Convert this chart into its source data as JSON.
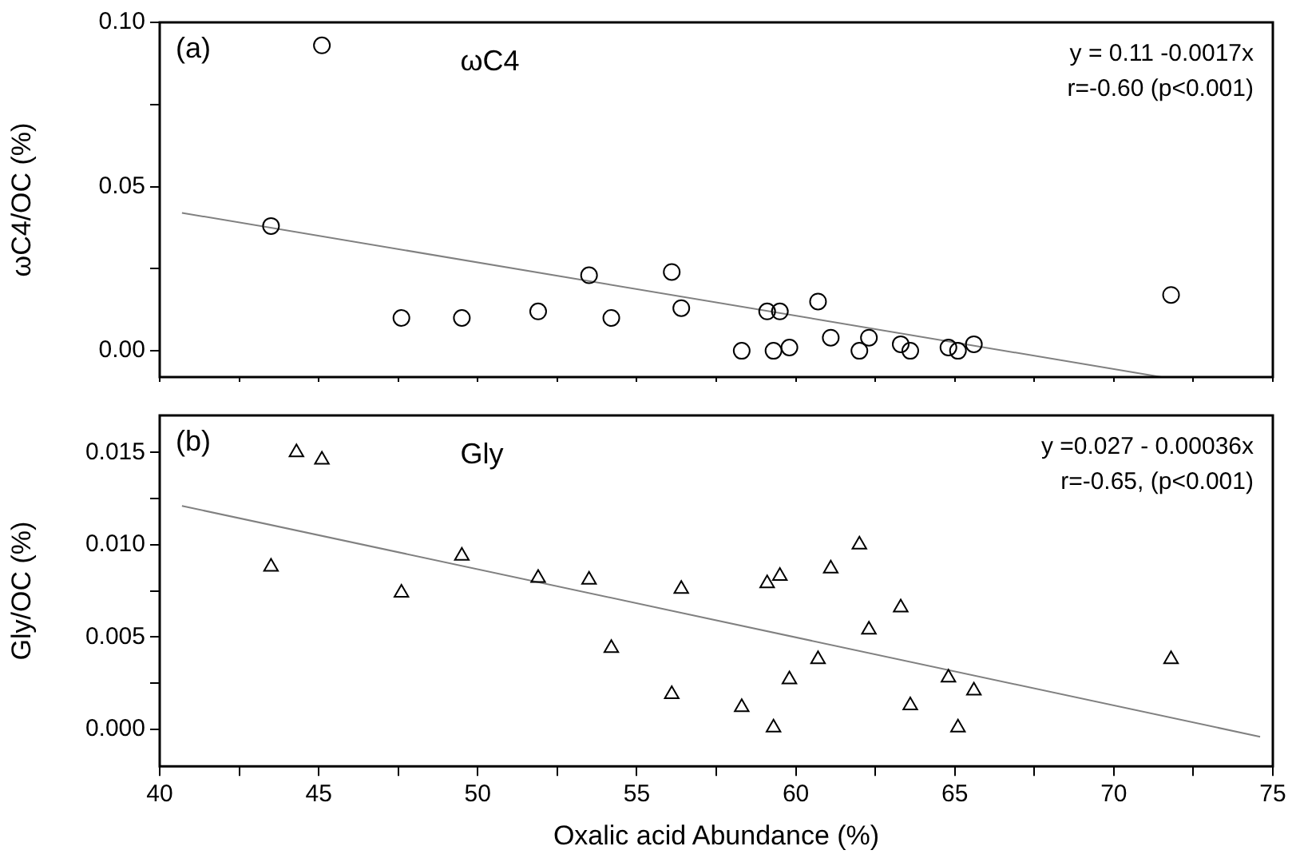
{
  "chart_data": [
    {
      "type": "scatter",
      "ylabel": "ωC4/OC (%)",
      "annotations": [
        "(a)",
        "ωC4",
        "y = 0.11 -0.0017x",
        "r=-0.60 (p<0.001)"
      ],
      "xlim": [
        40,
        75
      ],
      "xticks": [
        40,
        {
          "value": 42.5,
          "label": null
        },
        45,
        {
          "value": 47.5,
          "label": null
        },
        50,
        {
          "value": 52.5,
          "label": null
        },
        55,
        {
          "value": 57.5,
          "label": null
        },
        60,
        {
          "value": 62.5,
          "label": null
        },
        65,
        {
          "value": 67.5,
          "label": null
        },
        70,
        {
          "value": 72.5,
          "label": null
        },
        75
      ],
      "ylim": [
        -0.008,
        0.1
      ],
      "yticks": [
        {
          "value": 0,
          "label": "0.00"
        },
        {
          "value": 0.025,
          "label": null
        },
        {
          "value": 0.05,
          "label": "0.05"
        },
        {
          "value": 0.075,
          "label": null
        },
        {
          "value": 0.1,
          "label": "0.10"
        }
      ],
      "tick_labels": "y",
      "grid": false,
      "legend": false,
      "series": [
        {
          "marker": "circle",
          "color": "#000000",
          "x": [
            43.5,
            45.1,
            47.6,
            49.5,
            51.9,
            53.5,
            54.2,
            56.1,
            56.4,
            58.3,
            59.1,
            59.3,
            59.5,
            59.8,
            60.7,
            61.1,
            62.0,
            62.3,
            63.3,
            63.6,
            64.8,
            65.1,
            65.6,
            71.8
          ],
          "values": [
            0.038,
            0.093,
            0.01,
            0.01,
            0.012,
            0.023,
            0.01,
            0.024,
            0.013,
            0.0,
            0.012,
            0.0,
            0.012,
            0.001,
            0.015,
            0.004,
            0.0,
            0.004,
            0.002,
            0.0,
            0.001,
            0.0,
            0.002,
            0.017
          ]
        },
        {
          "type": "line",
          "marker": "none",
          "color": "#808080",
          "x": [
            40.7,
            71.5
          ],
          "values": [
            0.042,
            -0.008
          ]
        }
      ]
    },
    {
      "type": "scatter",
      "ylabel": "Gly/OC (%)",
      "xlabel": "Oxalic acid Abundance (%)",
      "annotations": [
        "(b)",
        "Gly",
        "y =0.027 - 0.00036x",
        "r=-0.65, (p<0.001)"
      ],
      "xlim": [
        40,
        75
      ],
      "xticks": [
        40,
        {
          "value": 42.5,
          "label": null
        },
        45,
        {
          "value": 47.5,
          "label": null
        },
        50,
        {
          "value": 52.5,
          "label": null
        },
        55,
        {
          "value": 57.5,
          "label": null
        },
        60,
        {
          "value": 62.5,
          "label": null
        },
        65,
        {
          "value": 67.5,
          "label": null
        },
        70,
        {
          "value": 72.5,
          "label": null
        },
        75
      ],
      "ylim": [
        -0.002,
        0.017
      ],
      "yticks": [
        {
          "value": 0,
          "label": "0.000"
        },
        {
          "value": 0.0025,
          "label": null
        },
        {
          "value": 0.005,
          "label": "0.005"
        },
        {
          "value": 0.0075,
          "label": null
        },
        {
          "value": 0.01,
          "label": "0.010"
        },
        {
          "value": 0.0125,
          "label": null
        },
        {
          "value": 0.015,
          "label": "0.015"
        }
      ],
      "grid": false,
      "legend": false,
      "series": [
        {
          "marker": "triangle",
          "color": "#000000",
          "x": [
            43.5,
            44.3,
            45.1,
            47.6,
            49.5,
            51.9,
            53.5,
            54.2,
            56.1,
            56.4,
            58.3,
            59.1,
            59.3,
            59.5,
            59.8,
            60.7,
            61.1,
            62.0,
            62.3,
            63.3,
            63.6,
            64.8,
            65.1,
            65.6,
            71.8
          ],
          "values": [
            0.0088,
            0.015,
            0.0146,
            0.0074,
            0.0094,
            0.0082,
            0.0081,
            0.0044,
            0.0019,
            0.0076,
            0.0012,
            0.0079,
            0.0001,
            0.0083,
            0.0027,
            0.0038,
            0.0087,
            0.01,
            0.0054,
            0.0066,
            0.0013,
            0.0028,
            0.0001,
            0.0021,
            0.0038
          ]
        },
        {
          "type": "line",
          "marker": "none",
          "color": "#808080",
          "x": [
            40.7,
            74.6
          ],
          "values": [
            0.0121,
            -0.0004
          ]
        }
      ]
    }
  ]
}
